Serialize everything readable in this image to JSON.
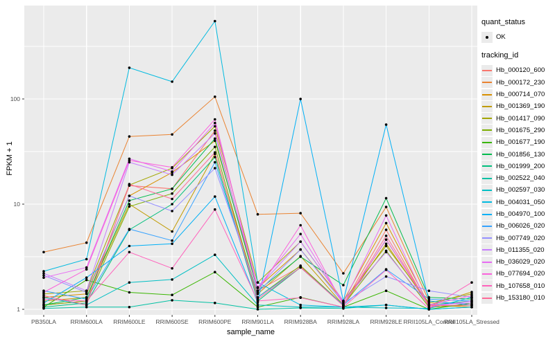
{
  "legend": {
    "quant_status_title": "quant_status",
    "ok_label": "OK",
    "tracking_title": "tracking_id"
  },
  "style": {
    "panel_bg": "#EBEBEB",
    "grid_color": "#FFFFFF",
    "tick_color": "#333333",
    "axis_text_color": "#4D4D4D",
    "point_color": "#000000",
    "legend_key_bg": "#EBEBEB"
  },
  "chart_data": {
    "type": "line",
    "title": "",
    "xlabel": "sample_name",
    "ylabel": "FPKM + 1",
    "yscale": "log10",
    "grid": true,
    "legend_position": "right",
    "yticks": [
      1,
      10,
      100
    ],
    "ytick_labels": [
      "1",
      "10",
      "100"
    ],
    "yminor": [
      3.162,
      31.62,
      316.2
    ],
    "ylim": [
      0.9,
      780
    ],
    "marker": "point",
    "categories": [
      "PB350LA",
      "RRIM600LA",
      "RRIM600LE",
      "RRIM600SE",
      "RRIM600PE",
      "RRIM901LA",
      "RRIM928BA",
      "RRIM928LA",
      "RRIM928LE",
      "RRII105LA_Control",
      "RRII105LA_Stressed"
    ],
    "series": [
      {
        "name": "Hb_000120_600",
        "color": "#F8766D",
        "values": [
          1.1,
          1.2,
          15.0,
          14.0,
          50,
          1.5,
          2.55,
          1.1,
          5.7,
          1.05,
          1.1
        ]
      },
      {
        "name": "Hb_000172_230",
        "color": "#EA8331",
        "values": [
          3.5,
          4.3,
          44,
          46,
          105,
          8.0,
          8.2,
          2.2,
          9.4,
          1.2,
          1.1
        ]
      },
      {
        "name": "Hb_000714_070",
        "color": "#D89000",
        "values": [
          1.3,
          1.4,
          12.0,
          20.0,
          40,
          1.6,
          3.7,
          1.2,
          6.6,
          1.1,
          1.05
        ]
      },
      {
        "name": "Hb_001369_190",
        "color": "#C09B00",
        "values": [
          1.2,
          1.3,
          10.0,
          5.5,
          30,
          1.4,
          3.2,
          1.1,
          4.2,
          1.1,
          1.46
        ]
      },
      {
        "name": "Hb_001417_090",
        "color": "#A3A500",
        "values": [
          1.4,
          1.5,
          15.2,
          22.0,
          55,
          1.8,
          4.4,
          1.2,
          4.0,
          1.15,
          1.4
        ]
      },
      {
        "name": "Hb_001675_290",
        "color": "#7CAE00",
        "values": [
          1.1,
          1.2,
          9.5,
          12.6,
          35,
          1.3,
          2.6,
          1.1,
          3.6,
          1.05,
          1.1
        ]
      },
      {
        "name": "Hb_001677_190",
        "color": "#39B600",
        "values": [
          1.05,
          1.9,
          1.45,
          1.37,
          2.26,
          1.05,
          1.3,
          1.05,
          1.5,
          1.0,
          1.15
        ]
      },
      {
        "name": "Hb_001856_130",
        "color": "#00BB4E",
        "values": [
          1.1,
          1.3,
          10.8,
          14.0,
          42,
          1.5,
          3.16,
          1.7,
          11.4,
          1.3,
          1.25
        ]
      },
      {
        "name": "Hb_001999_200",
        "color": "#00BF7D",
        "values": [
          1.05,
          1.15,
          5.7,
          10.0,
          28,
          1.2,
          2.5,
          1.1,
          4.6,
          1.1,
          1.2
        ]
      },
      {
        "name": "Hb_002522_040",
        "color": "#00C1A3",
        "values": [
          1.02,
          1.05,
          1.05,
          1.22,
          1.15,
          1.0,
          1.03,
          1.02,
          1.1,
          1.0,
          1.05
        ]
      },
      {
        "name": "Hb_002597_030",
        "color": "#00BFC4",
        "values": [
          1.3,
          1.1,
          1.8,
          1.92,
          3.3,
          1.1,
          1.05,
          1.05,
          1.03,
          1.02,
          1.3
        ]
      },
      {
        "name": "Hb_004031_050",
        "color": "#00BAE0",
        "values": [
          2.3,
          3.0,
          198,
          146,
          550,
          1.8,
          1.1,
          1.05,
          1.1,
          1.0,
          1.05
        ]
      },
      {
        "name": "Hb_004970_100",
        "color": "#00B0F6",
        "values": [
          1.15,
          2.0,
          4.0,
          4.2,
          11.8,
          1.16,
          100,
          1.2,
          57,
          1.2,
          1.1
        ]
      },
      {
        "name": "Hb_006026_020",
        "color": "#35A2FF",
        "values": [
          1.5,
          1.25,
          5.8,
          4.5,
          25,
          1.3,
          2.5,
          1.1,
          2.4,
          1.25,
          1.2
        ]
      },
      {
        "name": "Hb_007749_020",
        "color": "#9590FF",
        "values": [
          2.1,
          1.45,
          12.0,
          8.6,
          22,
          1.45,
          3.7,
          1.15,
          2.05,
          1.5,
          1.3
        ]
      },
      {
        "name": "Hb_011355_020",
        "color": "#C77CFF",
        "values": [
          2.2,
          1.5,
          25,
          19.0,
          47,
          1.6,
          4.4,
          1.2,
          3.5,
          1.1,
          1.15
        ]
      },
      {
        "name": "Hb_036029_020",
        "color": "#E76BF3",
        "values": [
          2.0,
          2.5,
          27,
          20.4,
          59,
          1.62,
          5.2,
          1.15,
          7.8,
          1.05,
          1.2
        ]
      },
      {
        "name": "Hb_077694_020",
        "color": "#FA62DB",
        "values": [
          1.45,
          2.4,
          26,
          22.4,
          64,
          1.5,
          6.3,
          1.1,
          4.6,
          1.1,
          1.35
        ]
      },
      {
        "name": "Hb_107658_010",
        "color": "#FF62BC",
        "values": [
          1.25,
          1.2,
          3.5,
          2.45,
          8.9,
          1.2,
          1.29,
          1.05,
          2.37,
          1.02,
          1.8
        ]
      },
      {
        "name": "Hb_153180_010",
        "color": "#FF6A98",
        "values": [
          1.35,
          1.1,
          15.5,
          11.2,
          31,
          1.25,
          2.5,
          1.08,
          5.0,
          1.08,
          1.1
        ]
      }
    ]
  }
}
